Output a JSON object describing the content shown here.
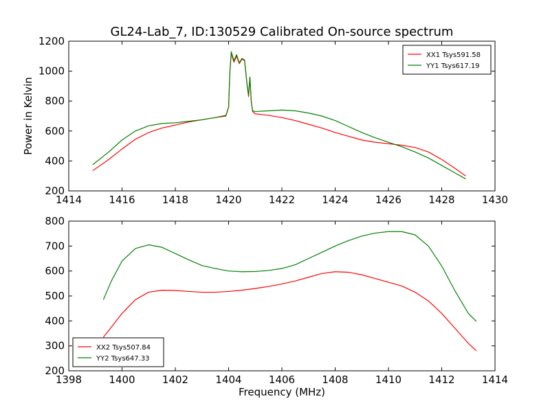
{
  "chart_data": [
    {
      "type": "line",
      "title": "GL24-Lab_7, ID:130529 Calibrated On-source spectrum",
      "xlabel": "",
      "ylabel": "Power in Kelvin",
      "xlim": [
        1414,
        1430
      ],
      "ylim": [
        200,
        1200
      ],
      "xticks": [
        1414,
        1416,
        1418,
        1420,
        1422,
        1424,
        1426,
        1428,
        1430
      ],
      "yticks": [
        200,
        400,
        600,
        800,
        1000,
        1200
      ],
      "grid": false,
      "legend_position": "top-right",
      "series": [
        {
          "name": "XX1 Tsys591.58",
          "color": "#ff0000",
          "x": [
            1414.9,
            1415.5,
            1416.0,
            1416.5,
            1417.0,
            1417.5,
            1418.0,
            1418.5,
            1419.0,
            1419.5,
            1419.9,
            1420.0,
            1420.05,
            1420.1,
            1420.2,
            1420.3,
            1420.4,
            1420.5,
            1420.6,
            1420.7,
            1420.75,
            1420.8,
            1420.85,
            1420.9,
            1421.0,
            1421.5,
            1422.0,
            1422.5,
            1423.0,
            1423.5,
            1424.0,
            1424.5,
            1425.0,
            1425.5,
            1426.0,
            1426.5,
            1427.0,
            1427.5,
            1428.0,
            1428.5,
            1428.9
          ],
          "y": [
            335,
            410,
            480,
            545,
            590,
            620,
            640,
            660,
            675,
            690,
            700,
            760,
            1000,
            1120,
            1060,
            1100,
            1050,
            1080,
            1070,
            900,
            830,
            960,
            800,
            730,
            715,
            705,
            690,
            670,
            645,
            620,
            590,
            565,
            540,
            525,
            515,
            505,
            490,
            460,
            410,
            350,
            300
          ]
        },
        {
          "name": "YY1 Tsys617.19",
          "color": "#008000",
          "x": [
            1414.9,
            1415.5,
            1416.0,
            1416.5,
            1417.0,
            1417.5,
            1418.0,
            1418.5,
            1419.0,
            1419.5,
            1419.9,
            1420.0,
            1420.05,
            1420.1,
            1420.2,
            1420.3,
            1420.4,
            1420.5,
            1420.6,
            1420.7,
            1420.75,
            1420.8,
            1420.85,
            1420.9,
            1421.0,
            1421.5,
            1422.0,
            1422.5,
            1423.0,
            1423.5,
            1424.0,
            1424.5,
            1425.0,
            1425.5,
            1426.0,
            1426.5,
            1427.0,
            1427.5,
            1428.0,
            1428.5,
            1428.9
          ],
          "y": [
            375,
            460,
            540,
            600,
            635,
            650,
            655,
            665,
            675,
            690,
            705,
            760,
            1000,
            1130,
            1070,
            1110,
            1055,
            1085,
            1075,
            900,
            840,
            960,
            800,
            735,
            730,
            735,
            740,
            735,
            720,
            700,
            670,
            630,
            590,
            555,
            525,
            495,
            460,
            420,
            370,
            320,
            280
          ]
        }
      ]
    },
    {
      "type": "line",
      "title": "",
      "xlabel": "Frequency (MHz)",
      "ylabel": "",
      "xlim": [
        1398,
        1414
      ],
      "ylim": [
        200,
        800
      ],
      "xticks": [
        1398,
        1400,
        1402,
        1404,
        1406,
        1408,
        1410,
        1412,
        1414
      ],
      "yticks": [
        200,
        300,
        400,
        500,
        600,
        700,
        800
      ],
      "grid": false,
      "legend_position": "bottom-left",
      "series": [
        {
          "name": "XX2 Tsys507.84",
          "color": "#ff0000",
          "x": [
            1399.3,
            1399.6,
            1400.0,
            1400.5,
            1401.0,
            1401.5,
            1402.0,
            1402.5,
            1403.0,
            1403.5,
            1404.0,
            1404.5,
            1405.0,
            1405.5,
            1406.0,
            1406.5,
            1407.0,
            1407.5,
            1408.0,
            1408.5,
            1409.0,
            1409.5,
            1410.0,
            1410.5,
            1411.0,
            1411.5,
            1412.0,
            1412.5,
            1413.0,
            1413.3
          ],
          "y": [
            335,
            375,
            430,
            485,
            515,
            523,
            522,
            518,
            515,
            515,
            518,
            523,
            530,
            538,
            548,
            560,
            575,
            590,
            597,
            595,
            585,
            570,
            555,
            540,
            515,
            480,
            430,
            370,
            310,
            280
          ]
        },
        {
          "name": "YY2 Tsys647.33",
          "color": "#008000",
          "x": [
            1399.3,
            1399.6,
            1400.0,
            1400.5,
            1401.0,
            1401.5,
            1402.0,
            1402.5,
            1403.0,
            1403.5,
            1404.0,
            1404.5,
            1405.0,
            1405.5,
            1406.0,
            1406.5,
            1407.0,
            1407.5,
            1408.0,
            1408.5,
            1409.0,
            1409.5,
            1410.0,
            1410.5,
            1411.0,
            1411.5,
            1412.0,
            1412.5,
            1413.0,
            1413.3
          ],
          "y": [
            485,
            560,
            640,
            690,
            705,
            695,
            670,
            645,
            622,
            610,
            600,
            597,
            598,
            602,
            610,
            625,
            650,
            675,
            700,
            722,
            740,
            752,
            758,
            758,
            745,
            700,
            620,
            520,
            430,
            398
          ]
        }
      ]
    }
  ]
}
